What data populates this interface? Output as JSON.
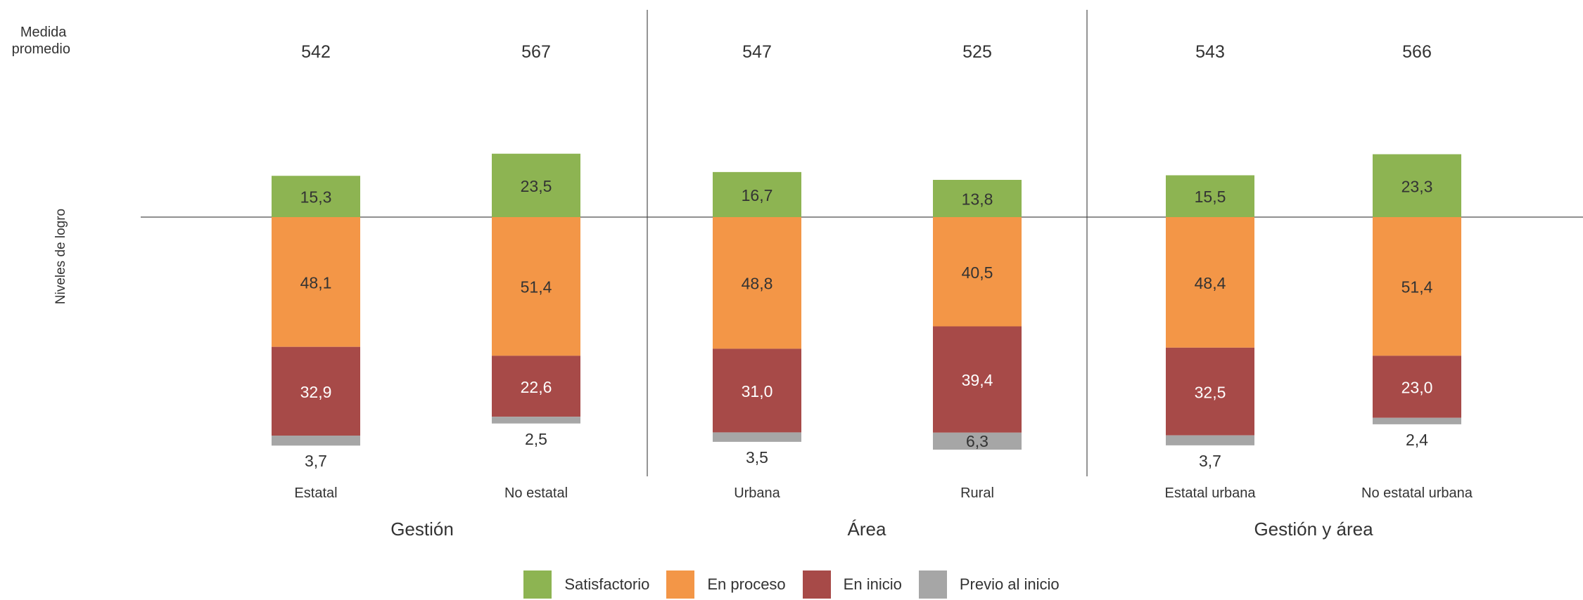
{
  "chart_data": {
    "type": "bar",
    "stacked": true,
    "row_labels": {
      "medida": "Medida\npromedio",
      "niveles": "Niveles de logro"
    },
    "categories": [
      "Estatal",
      "No estatal",
      "Urbana",
      "Rural",
      "Estatal urbana",
      "No estatal urbana"
    ],
    "groups": [
      {
        "label": "Gestión",
        "categories": [
          "Estatal",
          "No estatal"
        ]
      },
      {
        "label": "Área",
        "categories": [
          "Urbana",
          "Rural"
        ]
      },
      {
        "label": "Gestión y área",
        "categories": [
          "Estatal urbana",
          "No estatal urbana"
        ]
      }
    ],
    "medida_promedio": [
      542,
      567,
      547,
      525,
      543,
      566
    ],
    "series": [
      {
        "name": "Satisfactorio",
        "color": "#8db452",
        "values": [
          15.3,
          23.5,
          16.7,
          13.8,
          15.5,
          23.3
        ],
        "labels": [
          "15,3",
          "23,5",
          "16,7",
          "13,8",
          "15,5",
          "23,3"
        ]
      },
      {
        "name": "En proceso",
        "color": "#f39647",
        "values": [
          48.1,
          51.4,
          48.8,
          40.5,
          48.4,
          51.4
        ],
        "labels": [
          "48,1",
          "51,4",
          "48,8",
          "40,5",
          "48,4",
          "51,4"
        ]
      },
      {
        "name": "En inicio",
        "color": "#a74a48",
        "values": [
          32.9,
          22.6,
          31.0,
          39.4,
          32.5,
          23.0
        ],
        "labels": [
          "32,9",
          "22,6",
          "31,0",
          "39,4",
          "32,5",
          "23,0"
        ]
      },
      {
        "name": "Previo al inicio",
        "color": "#a6a6a6",
        "values": [
          3.7,
          2.5,
          3.5,
          6.3,
          3.7,
          2.4
        ],
        "labels": [
          "3,7",
          "2,5",
          "3,5",
          "6,3",
          "3,7",
          "2,4"
        ]
      }
    ],
    "legend_position": "bottom"
  }
}
